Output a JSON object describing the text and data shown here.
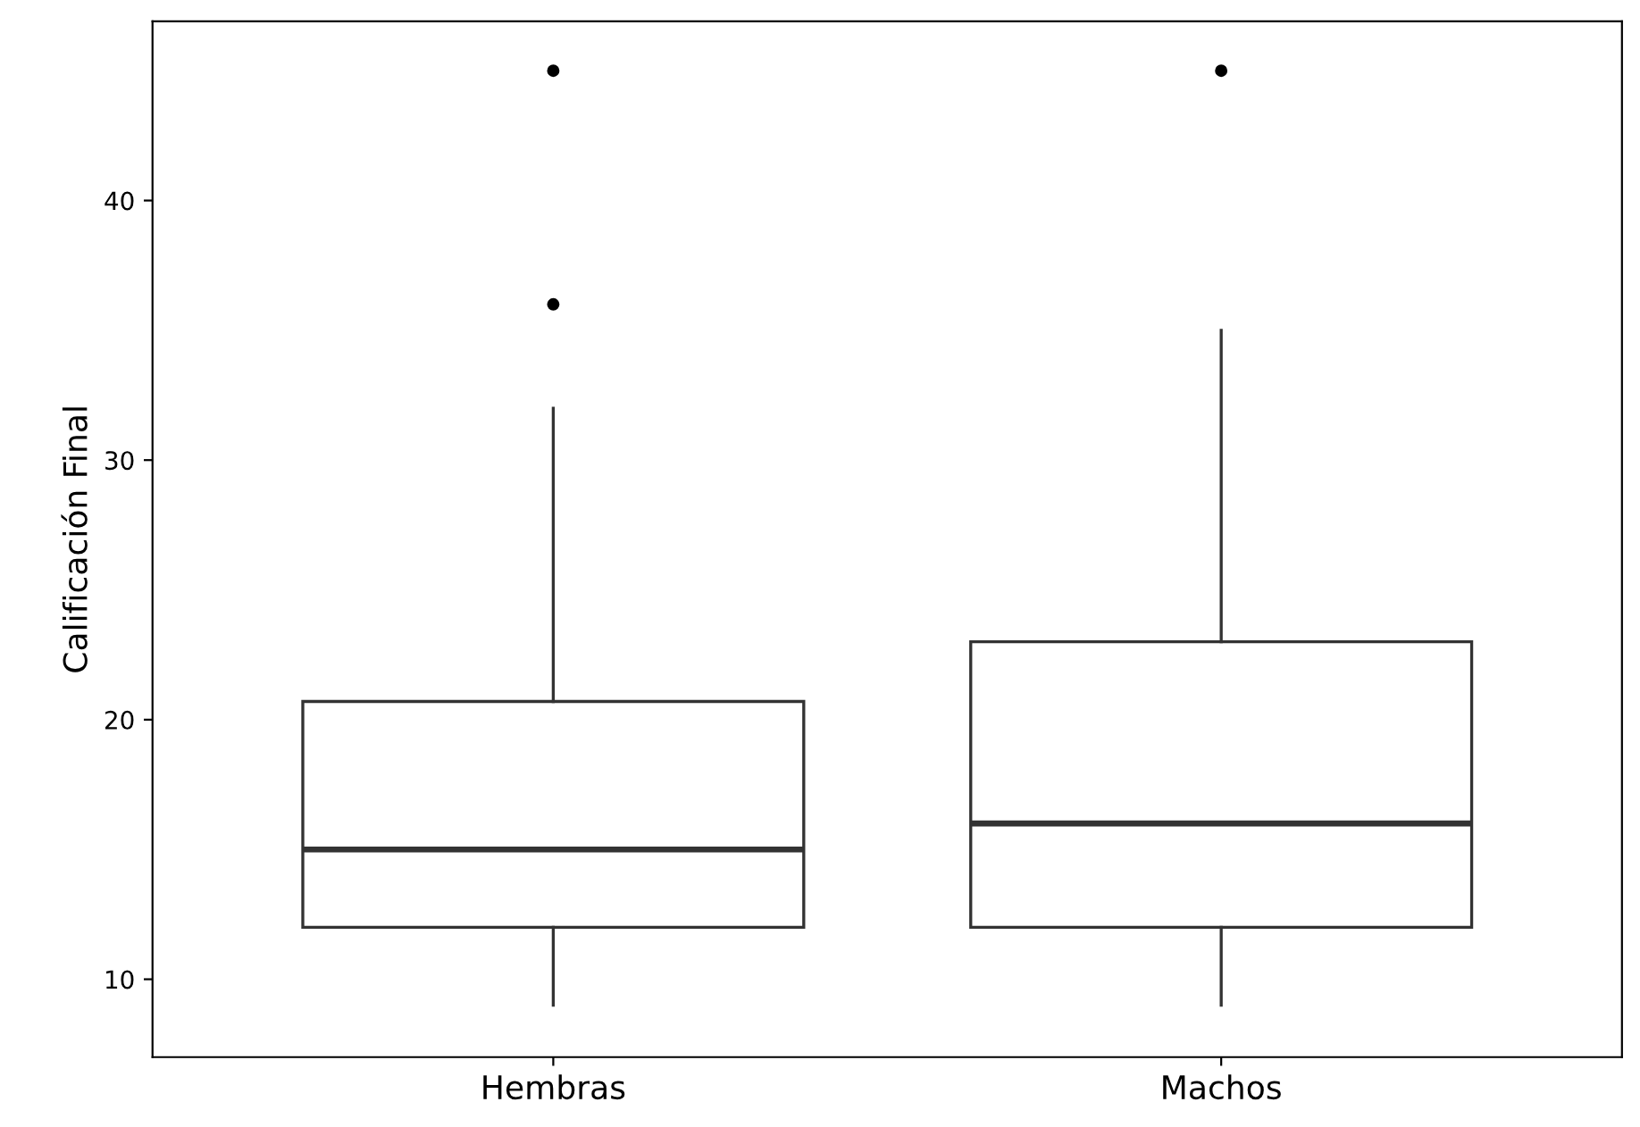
{
  "chart_data": {
    "type": "box",
    "ylabel": "Calificación Final",
    "categories": [
      "Hembras",
      "Machos"
    ],
    "boxes": [
      {
        "low": 9,
        "q1": 12,
        "median": 15,
        "q3": 20.7,
        "high": 32,
        "outliers": [
          36,
          45
        ]
      },
      {
        "low": 9,
        "q1": 12,
        "median": 16,
        "q3": 23,
        "high": 35,
        "outliers": [
          45
        ]
      }
    ],
    "ylim": [
      7,
      46.9
    ],
    "yticks": [
      10,
      20,
      30,
      40
    ],
    "grid": false,
    "legend": false
  }
}
